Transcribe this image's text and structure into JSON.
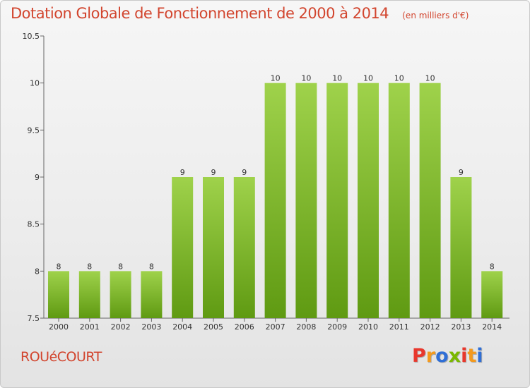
{
  "header": {
    "title": "Dotation Globale de Fonctionnement de 2000 à 2014",
    "subtitle": "(en milliers d'€)"
  },
  "footer": {
    "commune": "ROUéCOURT",
    "logo": "Proxiti"
  },
  "colors": {
    "bar_top": "#9fd24b",
    "bar_bottom": "#5f9a12",
    "title": "#d2452e",
    "logo": [
      "#e8372c",
      "#f39a1e",
      "#2f6fd6",
      "#7ab800",
      "#e8372c",
      "#f39a1e",
      "#2f6fd6"
    ]
  },
  "chart_data": {
    "type": "bar",
    "title": "Dotation Globale de Fonctionnement de 2000 à 2014",
    "subtitle": "(en milliers d'€)",
    "categories": [
      "2000",
      "2001",
      "2002",
      "2003",
      "2004",
      "2005",
      "2006",
      "2007",
      "2008",
      "2009",
      "2010",
      "2011",
      "2012",
      "2013",
      "2014"
    ],
    "values": [
      8,
      8,
      8,
      8,
      9,
      9,
      9,
      10,
      10,
      10,
      10,
      10,
      10,
      9,
      8
    ],
    "ylim": [
      7.5,
      10.5
    ],
    "yticks": [
      "7.5",
      "8",
      "8.5",
      "9",
      "9.5",
      "10",
      "10.5"
    ],
    "grid": false,
    "xlabel": "",
    "ylabel": ""
  }
}
